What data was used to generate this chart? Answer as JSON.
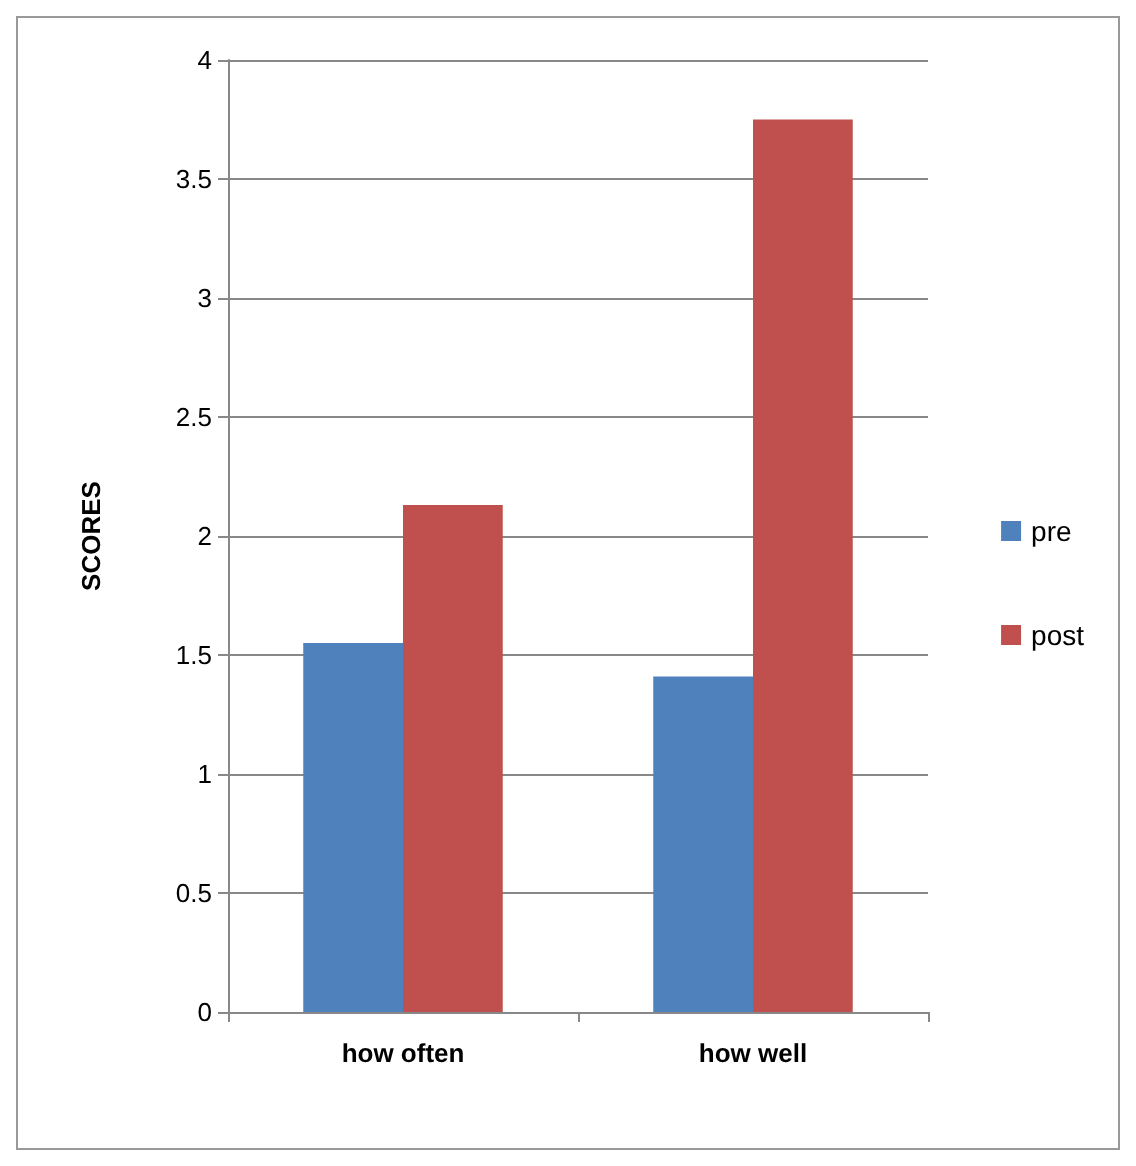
{
  "chart_data": {
    "type": "bar",
    "ylabel": "SCORES",
    "categories": [
      "how often",
      "how well"
    ],
    "series": [
      {
        "name": "pre",
        "color": "#4f81bd",
        "values": [
          1.55,
          1.41
        ]
      },
      {
        "name": "post",
        "color": "#c0504d",
        "values": [
          2.13,
          3.75
        ]
      }
    ],
    "ylim": [
      0,
      4
    ],
    "yticks": [
      0,
      0.5,
      1,
      1.5,
      2,
      2.5,
      3,
      3.5,
      4
    ],
    "grid": "y",
    "legend": "right"
  }
}
